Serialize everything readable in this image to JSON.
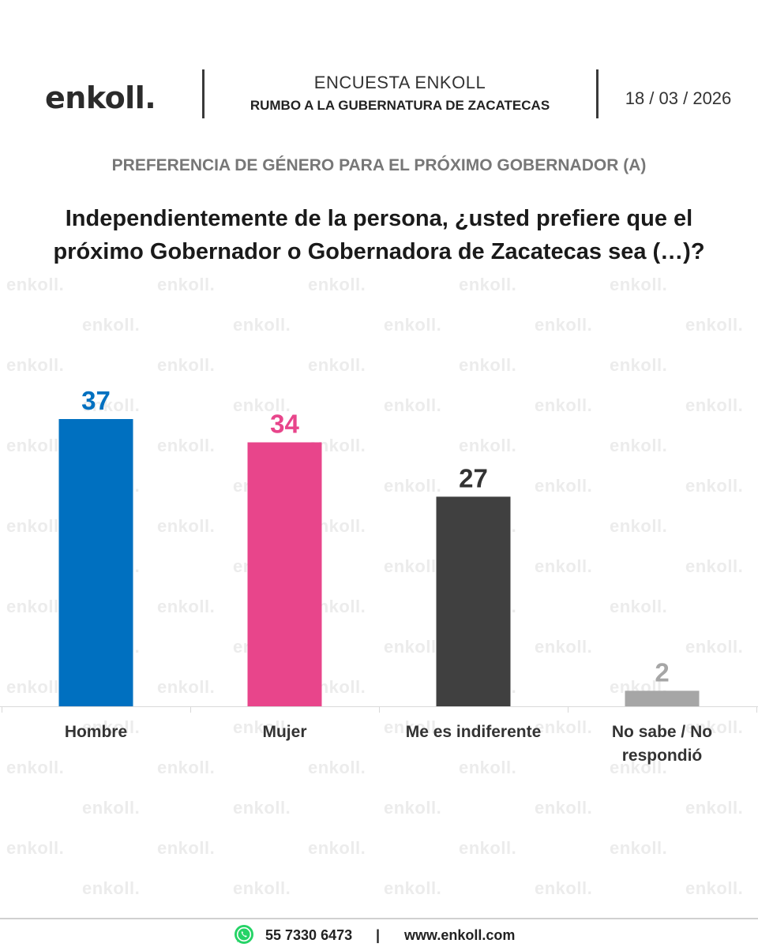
{
  "header": {
    "logo": "enkoll.",
    "title": "ENCUESTA ENKOLL",
    "subtitle": "RUMBO A LA GUBERNATURA DE ZACATECAS",
    "date": "18 / 03 / 2026"
  },
  "section_title": "PREFERENCIA DE GÉNERO PARA EL PRÓXIMO GOBERNADOR (A)",
  "question": "Independientemente de la persona, ¿usted prefiere que el próximo Gobernador o Gobernadora de Zacatecas sea (…)?",
  "watermark": "enkoll.",
  "colors": {
    "hombre": "#0070c0",
    "mujer": "#e8458b",
    "indiferente": "#404040",
    "no_sabe": "#a6a6a6",
    "watermark": "#ececec",
    "whatsapp": "#25d366"
  },
  "chart_data": {
    "type": "bar",
    "categories": [
      "Hombre",
      "Mujer",
      "Me es indiferente",
      "No sabe / No respondió"
    ],
    "values": [
      37,
      34,
      27,
      2
    ],
    "colors": [
      "#0070c0",
      "#e8458b",
      "#404040",
      "#a6a6a6"
    ],
    "label_colors": [
      "#0070c0",
      "#e8458b",
      "#333333",
      "#a6a6a6"
    ],
    "ylim": [
      0,
      40
    ]
  },
  "footer": {
    "icon": "whatsapp-icon",
    "phone": "55 7330 6473",
    "separator": "|",
    "website": "www.enkoll.com"
  }
}
